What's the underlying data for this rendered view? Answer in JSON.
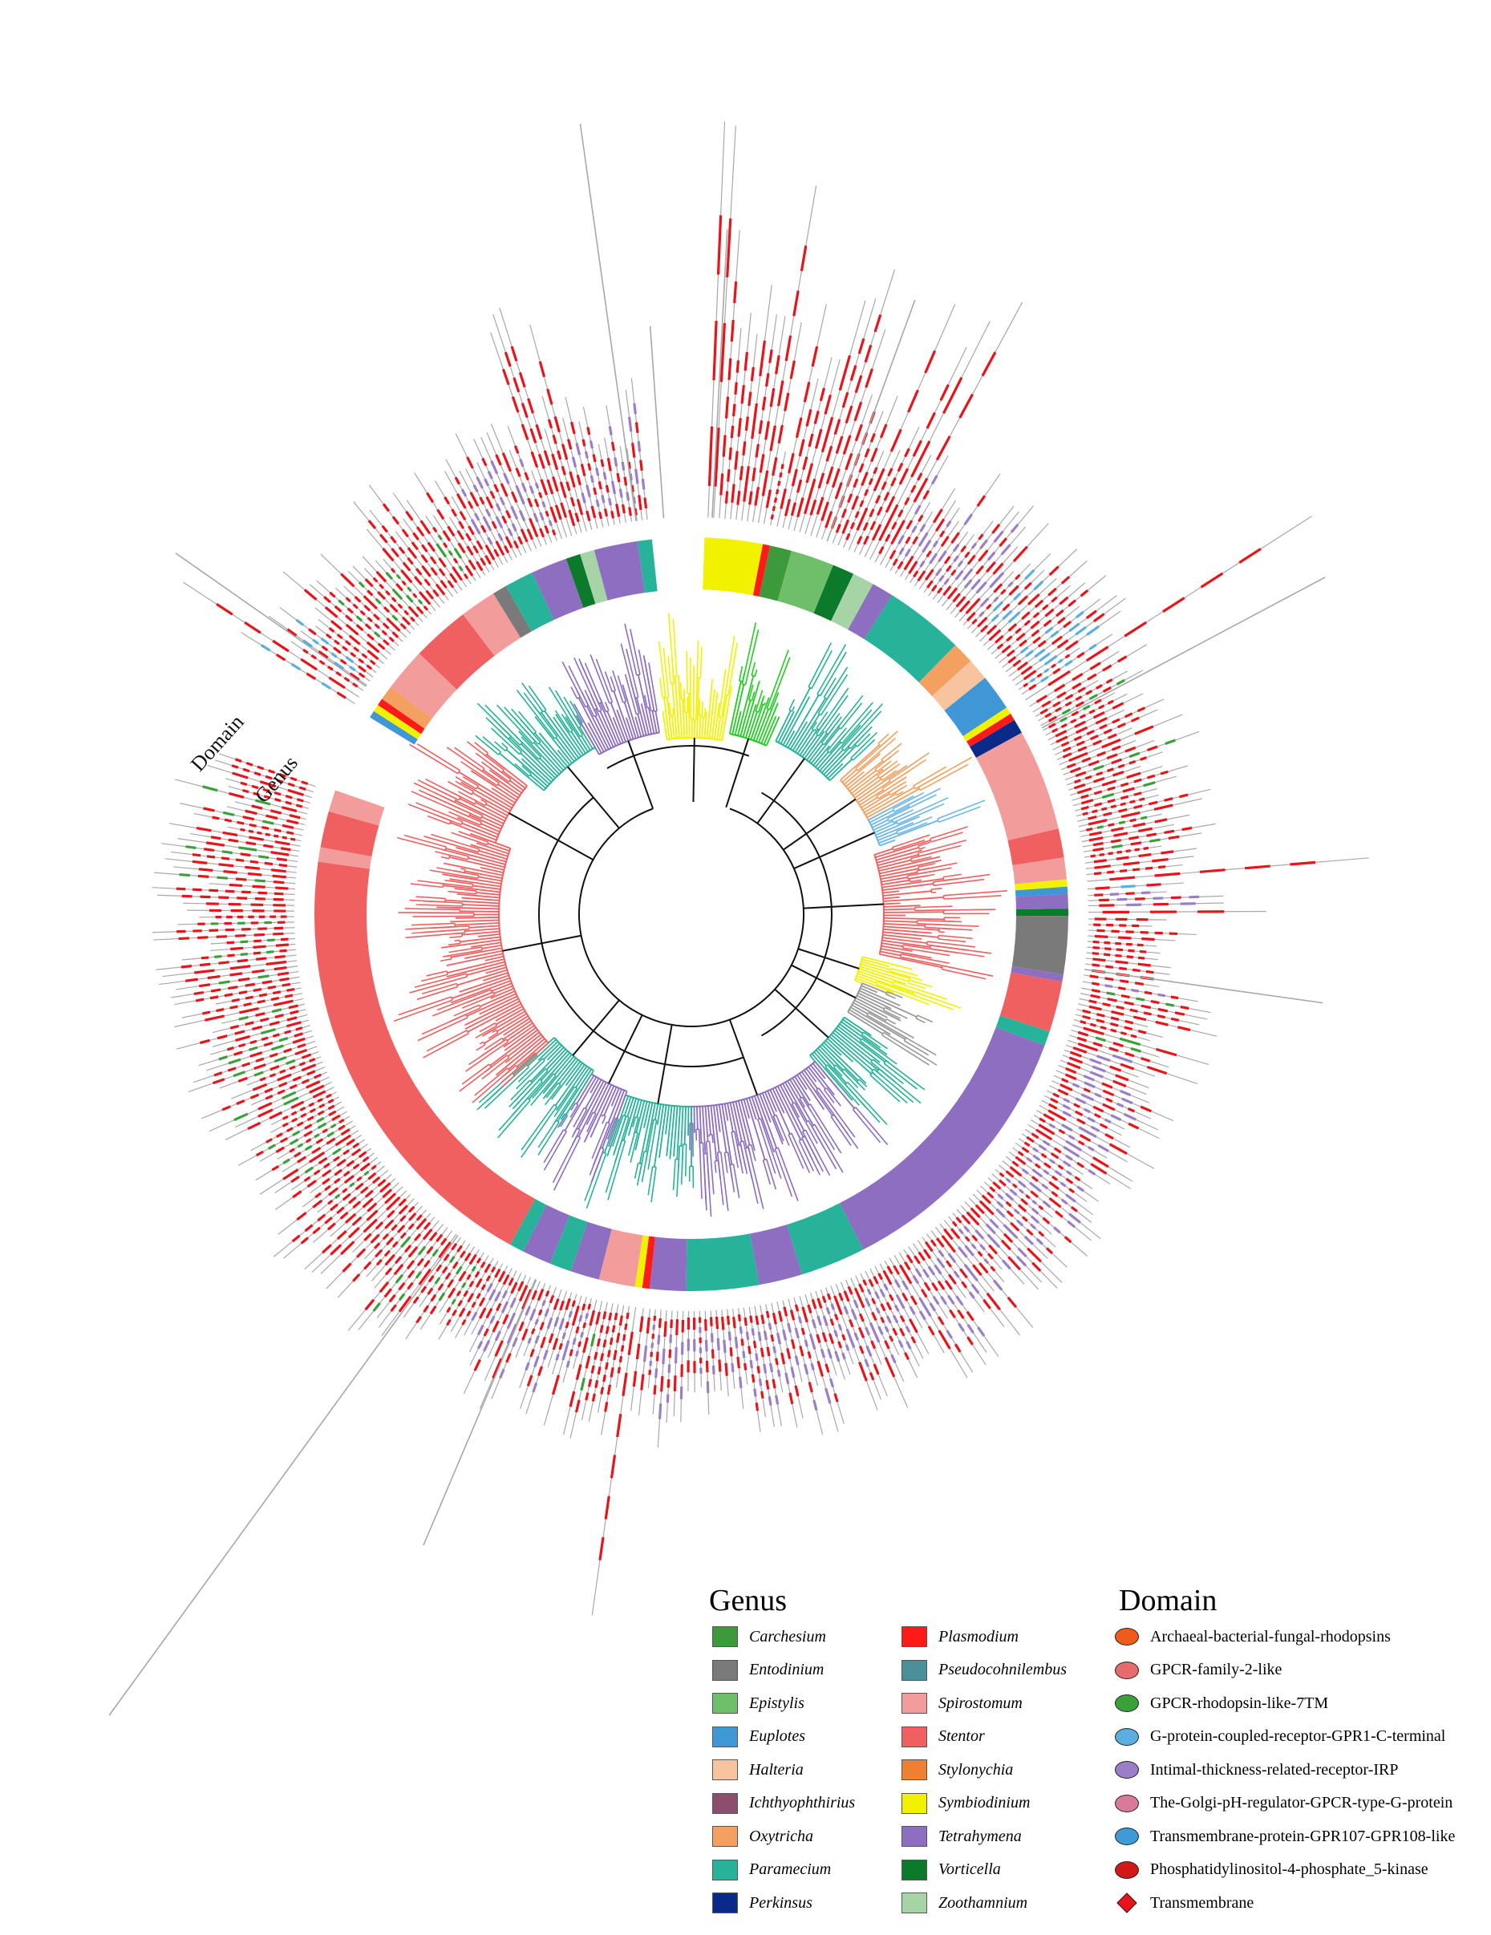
{
  "labels": {
    "domain_ring": "Domain",
    "genus_ring": "Genus"
  },
  "legend": {
    "genus_title": "Genus",
    "domain_title": "Domain",
    "genus": [
      {
        "name": "Carchesium",
        "color": "#3c9a3a"
      },
      {
        "name": "Entodinium",
        "color": "#7a7a7a"
      },
      {
        "name": "Epistylis",
        "color": "#6fbf6a"
      },
      {
        "name": "Euplotes",
        "color": "#3f97d5"
      },
      {
        "name": "Halteria",
        "color": "#f8c4a0"
      },
      {
        "name": "Ichthyophthirius",
        "color": "#8b4f6d"
      },
      {
        "name": "Oxytricha",
        "color": "#f3a060"
      },
      {
        "name": "Paramecium",
        "color": "#26b39a"
      },
      {
        "name": "Perkinsus",
        "color": "#0a2a8a"
      },
      {
        "name": "Plasmodium",
        "color": "#ff1a1a"
      },
      {
        "name": "Pseudocohnilembus",
        "color": "#4a8f9a"
      },
      {
        "name": "Spirostomum",
        "color": "#f29c9c"
      },
      {
        "name": "Stentor",
        "color": "#f06060"
      },
      {
        "name": "Stylonychia",
        "color": "#ee8030"
      },
      {
        "name": "Symbiodinium",
        "color": "#f2f200"
      },
      {
        "name": "Tetrahymena",
        "color": "#8d6ec0"
      },
      {
        "name": "Vorticella",
        "color": "#0b7a2b"
      },
      {
        "name": "Zoothamnium",
        "color": "#a6d4a6"
      }
    ],
    "domain": [
      {
        "name": "Archaeal-bacterial-fungal-rhodopsins",
        "color": "#f05a1a",
        "shape": "ellipse"
      },
      {
        "name": "GPCR-family-2-like",
        "color": "#e86b6b",
        "shape": "ellipse"
      },
      {
        "name": "GPCR-rhodopsin-like-7TM",
        "color": "#3aa13a",
        "shape": "ellipse"
      },
      {
        "name": "G-protein-coupled-receptor-GPR1-C-terminal",
        "color": "#5aaee0",
        "shape": "ellipse"
      },
      {
        "name": "Intimal-thickness-related-receptor-IRP",
        "color": "#9a7ec8",
        "shape": "ellipse"
      },
      {
        "name": "The-Golgi-pH-regulator-GPCR-type-G-protein",
        "color": "#d97a9a",
        "shape": "ellipse"
      },
      {
        "name": "Transmembrane-protein-GPR107-GPR108-like",
        "color": "#3f9ad8",
        "shape": "ellipse"
      },
      {
        "name": "Phosphatidylinositol-4-phosphate_5-kinase",
        "color": "#d01818",
        "shape": "ellipse"
      },
      {
        "name": "Transmembrane",
        "color": "#e8141a",
        "shape": "diamond"
      }
    ]
  }
}
